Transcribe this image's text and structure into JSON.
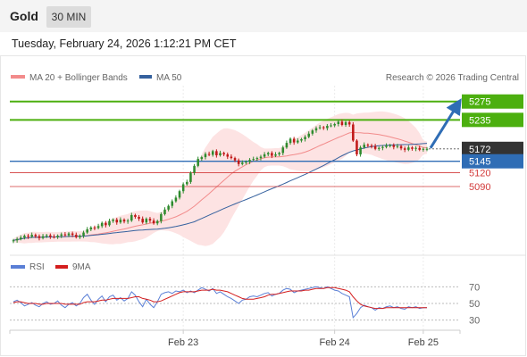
{
  "header": {
    "symbol": "Gold",
    "interval": "30 MIN",
    "datetime": "Tuesday, February 24, 2026 1:12:21 PM CET"
  },
  "legend": {
    "bb_label": "MA 20 + Bollinger Bands",
    "ma50_label": "MA 50",
    "credit": "Research © 2026 Trading Central",
    "rsi_label": "RSI",
    "rsi_ma_label": "9MA"
  },
  "colors": {
    "bullish": "#2e8b2e",
    "bearish": "#c01818",
    "resistance": "#4caf0f",
    "support": "#2f6db5",
    "intraday_support": "#d23a3a",
    "current_price": "#333333",
    "bollinger_fill": "#fde3e3",
    "ma20": "#f28b8b",
    "ma50": "#35619e",
    "rsi": "#5a7fd6",
    "rsi_ma": "#d41e1e",
    "arrow": "#2f6db5"
  },
  "chart_data": [
    {
      "type": "candlestick",
      "title": "Gold 30 MIN",
      "x_ticks": [
        "Feb 23",
        "Feb 24",
        "Feb 25"
      ],
      "ylim": [
        4960,
        5290
      ],
      "levels": [
        {
          "label": "5275",
          "value": 5275,
          "kind": "resistance"
        },
        {
          "label": "5235",
          "value": 5235,
          "kind": "resistance"
        },
        {
          "label": "5172",
          "value": 5172,
          "kind": "current"
        },
        {
          "label": "5145",
          "value": 5145,
          "kind": "support"
        },
        {
          "label": "5120",
          "value": 5120,
          "kind": "intraday_support"
        },
        {
          "label": "5090",
          "value": 5090,
          "kind": "intraday_support"
        }
      ],
      "closes": [
        4973,
        4976,
        4979,
        4983,
        4981,
        4985,
        4982,
        4978,
        4982,
        4984,
        4981,
        4980,
        4983,
        4986,
        4984,
        4988,
        4985,
        4980,
        4983,
        4990,
        4997,
        5001,
        5000,
        5004,
        5011,
        5006,
        5015,
        5018,
        5012,
        5018,
        5014,
        5016,
        5028,
        5024,
        5020,
        5012,
        5020,
        5016,
        5010,
        5015,
        5030,
        5040,
        5048,
        5058,
        5066,
        5080,
        5095,
        5100,
        5120,
        5135,
        5150,
        5154,
        5161,
        5159,
        5167,
        5158,
        5163,
        5160,
        5155,
        5152,
        5147,
        5139,
        5142,
        5144,
        5148,
        5150,
        5152,
        5155,
        5160,
        5163,
        5157,
        5160,
        5163,
        5175,
        5185,
        5194,
        5186,
        5190,
        5193,
        5198,
        5205,
        5212,
        5217,
        5219,
        5217,
        5222,
        5223,
        5226,
        5231,
        5224,
        5230,
        5225,
        5190,
        5160,
        5175,
        5181,
        5179,
        5178,
        5172,
        5174,
        5176,
        5179,
        5180,
        5176,
        5178,
        5173,
        5170,
        5175,
        5172,
        5174,
        5170,
        5172,
        5172
      ],
      "rsi": {
        "ylim": [
          20,
          80
        ],
        "levels": [
          70,
          50,
          30
        ],
        "values": [
          52,
          54,
          51,
          47,
          49,
          51,
          48,
          46,
          50,
          52,
          49,
          50,
          53,
          48,
          45,
          49,
          51,
          47,
          50,
          57,
          61,
          54,
          49,
          55,
          59,
          52,
          58,
          60,
          54,
          57,
          53,
          56,
          64,
          60,
          52,
          46,
          55,
          49,
          45,
          52,
          61,
          63,
          64,
          62,
          65,
          64,
          66,
          63,
          65,
          63,
          66,
          69,
          67,
          65,
          68,
          62,
          64,
          61,
          58,
          56,
          53,
          50,
          54,
          55,
          58,
          59,
          58,
          60,
          62,
          63,
          59,
          61,
          62,
          66,
          68,
          67,
          63,
          65,
          66,
          67,
          68,
          69,
          70,
          69,
          68,
          70,
          68,
          66,
          65,
          62,
          60,
          58,
          33,
          38,
          45,
          48,
          46,
          45,
          42,
          45,
          44,
          46,
          47,
          45,
          46,
          44,
          43,
          46,
          45,
          46,
          44,
          45,
          45
        ],
        "ma_values": [
          51,
          52,
          52,
          51,
          50,
          50,
          50,
          49,
          49,
          50,
          50,
          50,
          50,
          50,
          49,
          49,
          49,
          49,
          49,
          51,
          52,
          52,
          52,
          53,
          54,
          54,
          55,
          56,
          56,
          56,
          56,
          56,
          57,
          58,
          58,
          56,
          55,
          54,
          52,
          52,
          53,
          55,
          57,
          59,
          61,
          63,
          64,
          64,
          64,
          64,
          65,
          66,
          66,
          66,
          67,
          66,
          66,
          65,
          64,
          62,
          60,
          58,
          56,
          55,
          55,
          55,
          56,
          57,
          58,
          60,
          61,
          61,
          62,
          63,
          64,
          65,
          65,
          65,
          65,
          66,
          66,
          67,
          68,
          68,
          68,
          69,
          69,
          69,
          68,
          67,
          66,
          64,
          58,
          53,
          49,
          47,
          46,
          45,
          44,
          44,
          44,
          45,
          45,
          45,
          45,
          45,
          45,
          45,
          45,
          45,
          45,
          45,
          45
        ]
      }
    }
  ]
}
